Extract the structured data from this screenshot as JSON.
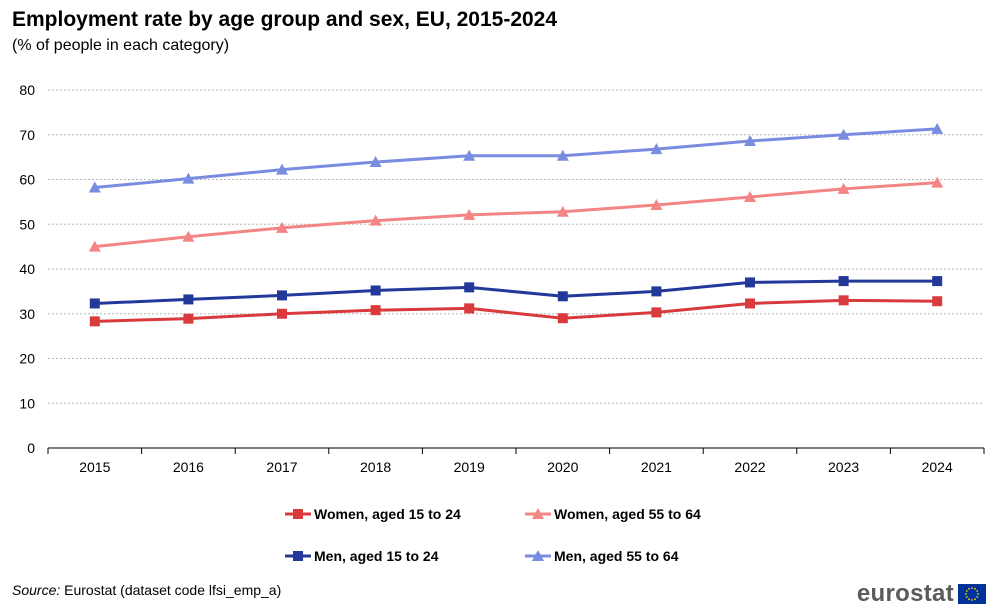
{
  "header": {
    "title": "Employment rate by age group and sex, EU, 2015-2024",
    "subtitle": "(% of people in each category)"
  },
  "footer": {
    "source_label": "Source:",
    "source_text": " Eurostat (dataset code lfsi_emp_a)",
    "logo_text": "eurostat",
    "flag_colors": {
      "field": "#003399",
      "stars": "#FFCC00"
    }
  },
  "chart_data": {
    "type": "line",
    "categories": [
      "2015",
      "2016",
      "2017",
      "2018",
      "2019",
      "2020",
      "2021",
      "2022",
      "2023",
      "2024"
    ],
    "ylim": [
      0,
      80
    ],
    "yticks": [
      0,
      10,
      20,
      30,
      40,
      50,
      60,
      70,
      80
    ],
    "grid": true,
    "legend_position": "bottom",
    "series": [
      {
        "name": "Women, aged 15 to 24",
        "marker": "square",
        "color": "#D93A3E",
        "values": [
          28.3,
          28.9,
          30.0,
          30.8,
          31.2,
          29.0,
          30.3,
          32.3,
          33.0,
          32.8
        ]
      },
      {
        "name": "Women, aged 55 to 64",
        "marker": "triangle",
        "color": "#F38585",
        "values": [
          45.0,
          47.2,
          49.2,
          50.8,
          52.1,
          52.8,
          54.3,
          56.1,
          57.9,
          59.3
        ]
      },
      {
        "name": "Men, aged 15 to 24",
        "marker": "square",
        "color": "#22399A",
        "values": [
          32.3,
          33.2,
          34.1,
          35.2,
          35.9,
          33.9,
          35.0,
          37.0,
          37.3,
          37.3
        ]
      },
      {
        "name": "Men, aged 55 to 64",
        "marker": "triangle",
        "color": "#7A8CE0",
        "values": [
          58.2,
          60.2,
          62.2,
          63.9,
          65.3,
          65.3,
          66.8,
          68.6,
          70.0,
          71.3
        ]
      }
    ]
  }
}
